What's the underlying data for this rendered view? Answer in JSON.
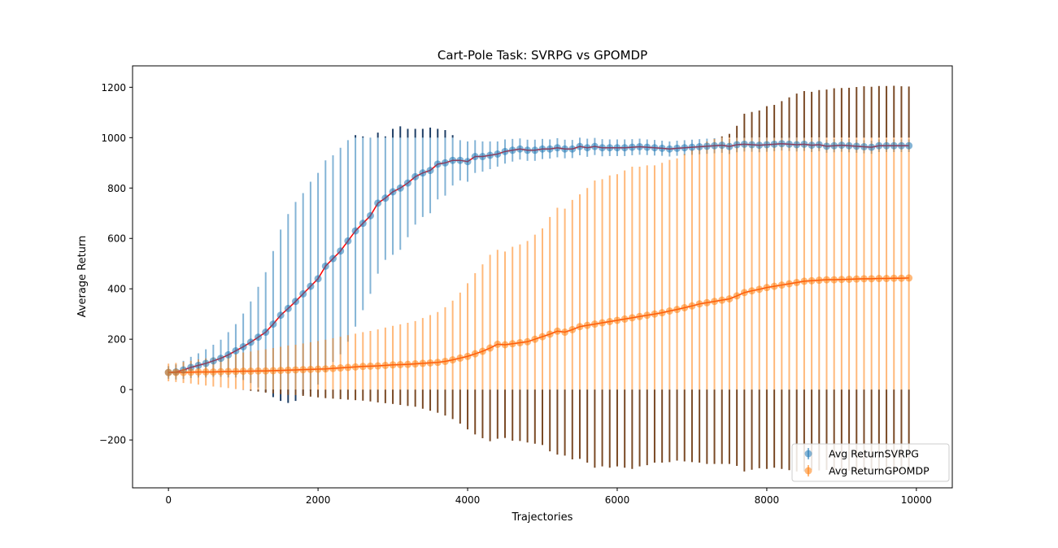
{
  "chart_data": {
    "type": "scatter",
    "title": "Cart-Pole Task: SVRPG vs GPOMDP",
    "xlabel": "Trajectories",
    "ylabel": "Average Return",
    "xlim": [
      -480,
      10480
    ],
    "ylim": [
      -390,
      1285
    ],
    "xticks": [
      0,
      2000,
      4000,
      6000,
      8000,
      10000
    ],
    "yticks": [
      -200,
      0,
      200,
      400,
      600,
      800,
      1000,
      1200
    ],
    "grid": false,
    "legend_position": "lower-right",
    "error_bars": "clipped to [0, 1000] in lighter color; portion outside shown darker",
    "series": [
      {
        "name": "Avg ReturnSVRPG",
        "color": "#1f77b4",
        "fit_line_color": "#ff0000",
        "x": [
          0,
          100,
          200,
          300,
          400,
          500,
          600,
          700,
          800,
          900,
          1000,
          1100,
          1200,
          1300,
          1400,
          1500,
          1600,
          1700,
          1800,
          1900,
          2000,
          2100,
          2200,
          2300,
          2400,
          2500,
          2600,
          2700,
          2800,
          2900,
          3000,
          3100,
          3200,
          3300,
          3400,
          3500,
          3600,
          3700,
          3800,
          3900,
          4000,
          4100,
          4200,
          4300,
          4400,
          4500,
          4600,
          4700,
          4800,
          4900,
          5000,
          5100,
          5200,
          5300,
          5400,
          5500,
          5600,
          5700,
          5800,
          5900,
          6000,
          6100,
          6200,
          6300,
          6400,
          6500,
          6600,
          6700,
          6800,
          6900,
          7000,
          7100,
          7200,
          7300,
          7400,
          7500,
          7600,
          7700,
          7800,
          7900,
          8000,
          8100,
          8200,
          8300,
          8400,
          8500,
          8600,
          8700,
          8800,
          8900,
          9000,
          9100,
          9200,
          9300,
          9400,
          9500,
          9600,
          9700,
          9800,
          9900
        ],
        "y": [
          68,
          70,
          78,
          88,
          96,
          104,
          114,
          124,
          138,
          154,
          170,
          188,
          208,
          228,
          260,
          295,
          322,
          350,
          380,
          410,
          440,
          490,
          520,
          550,
          590,
          630,
          660,
          690,
          740,
          760,
          785,
          800,
          820,
          845,
          860,
          870,
          895,
          900,
          910,
          910,
          905,
          925,
          925,
          930,
          935,
          945,
          950,
          955,
          950,
          950,
          955,
          955,
          960,
          955,
          955,
          965,
          960,
          965,
          960,
          960,
          960,
          960,
          962,
          964,
          962,
          960,
          958,
          955,
          958,
          960,
          962,
          964,
          966,
          968,
          970,
          965,
          972,
          974,
          972,
          970,
          972,
          974,
          976,
          974,
          972,
          974,
          970,
          972,
          966,
          968,
          970,
          968,
          966,
          964,
          962,
          968,
          968,
          968,
          968,
          968
        ],
        "err": [
          25,
          30,
          36,
          42,
          48,
          56,
          64,
          74,
          90,
          106,
          132,
          162,
          200,
          238,
          290,
          340,
          375,
          395,
          400,
          415,
          420,
          420,
          410,
          410,
          400,
          380,
          345,
          310,
          280,
          245,
          250,
          245,
          215,
          190,
          175,
          170,
          140,
          130,
          100,
          80,
          80,
          65,
          60,
          55,
          50,
          48,
          45,
          42,
          42,
          42,
          40,
          38,
          38,
          37,
          36,
          35,
          36,
          34,
          34,
          33,
          33,
          33,
          32,
          32,
          31,
          31,
          30,
          30,
          30,
          30,
          30,
          30,
          30,
          30,
          30,
          30,
          30,
          29,
          28,
          28,
          28,
          28,
          27,
          27,
          27,
          27,
          27,
          26,
          26,
          26,
          26,
          26,
          26,
          26,
          26,
          25,
          25,
          25,
          25,
          25
        ]
      },
      {
        "name": "Avg ReturnGPOMDP",
        "color": "#ff7f0e",
        "fit_line_color": "#ff3300",
        "x": [
          0,
          100,
          200,
          300,
          400,
          500,
          600,
          700,
          800,
          900,
          1000,
          1100,
          1200,
          1300,
          1400,
          1500,
          1600,
          1700,
          1800,
          1900,
          2000,
          2100,
          2200,
          2300,
          2400,
          2500,
          2600,
          2700,
          2800,
          2900,
          3000,
          3100,
          3200,
          3300,
          3400,
          3500,
          3600,
          3700,
          3800,
          3900,
          4000,
          4100,
          4200,
          4300,
          4400,
          4500,
          4600,
          4700,
          4800,
          4900,
          5000,
          5100,
          5200,
          5300,
          5400,
          5500,
          5600,
          5700,
          5800,
          5900,
          6000,
          6100,
          6200,
          6300,
          6400,
          6500,
          6600,
          6700,
          6800,
          6900,
          7000,
          7100,
          7200,
          7300,
          7400,
          7500,
          7600,
          7700,
          7800,
          7900,
          8000,
          8100,
          8200,
          8300,
          8400,
          8500,
          8600,
          8700,
          8800,
          8900,
          9000,
          9100,
          9200,
          9300,
          9400,
          9500,
          9600,
          9700,
          9800,
          9900
        ],
        "y": [
          68,
          68,
          68,
          69,
          70,
          70,
          70,
          71,
          72,
          72,
          73,
          73,
          74,
          74,
          75,
          76,
          77,
          78,
          79,
          80,
          81,
          82,
          84,
          86,
          88,
          90,
          92,
          93,
          94,
          96,
          98,
          99,
          100,
          102,
          104,
          106,
          108,
          112,
          118,
          125,
          132,
          142,
          152,
          165,
          180,
          178,
          182,
          186,
          190,
          200,
          210,
          220,
          232,
          228,
          238,
          250,
          255,
          260,
          265,
          270,
          275,
          280,
          285,
          290,
          295,
          300,
          305,
          312,
          318,
          325,
          332,
          340,
          345,
          350,
          355,
          360,
          372,
          385,
          392,
          398,
          405,
          410,
          415,
          420,
          425,
          430,
          432,
          434,
          436,
          436,
          437,
          438,
          439,
          440,
          440,
          441,
          441,
          442,
          442,
          443
        ],
        "err": [
          35,
          38,
          42,
          45,
          50,
          54,
          58,
          62,
          66,
          70,
          74,
          78,
          82,
          86,
          90,
          94,
          98,
          100,
          104,
          108,
          112,
          116,
          120,
          124,
          128,
          132,
          136,
          140,
          145,
          150,
          155,
          160,
          165,
          170,
          180,
          190,
          200,
          215,
          235,
          260,
          290,
          320,
          345,
          370,
          375,
          370,
          385,
          390,
          400,
          415,
          430,
          465,
          490,
          490,
          515,
          525,
          545,
          570,
          570,
          580,
          580,
          590,
          600,
          595,
          595,
          590,
          595,
          600,
          600,
          610,
          620,
          630,
          640,
          645,
          650,
          655,
          675,
          710,
          710,
          710,
          720,
          720,
          730,
          740,
          750,
          755,
          750,
          755,
          755,
          760,
          760,
          760,
          762,
          764,
          762,
          764,
          764,
          764,
          762,
          760
        ]
      }
    ]
  }
}
